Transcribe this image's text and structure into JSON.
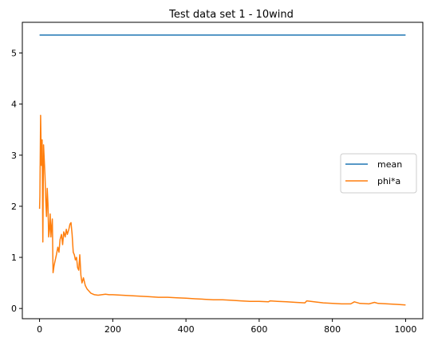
{
  "chart_data": {
    "type": "line",
    "title": "Test data set 1 - 10wind",
    "xlabel": "",
    "ylabel": "",
    "xlim": [
      -47,
      1047
    ],
    "ylim": [
      -0.2,
      5.6
    ],
    "xticks": [
      0,
      200,
      400,
      600,
      800,
      1000
    ],
    "yticks": [
      0,
      1,
      2,
      3,
      4,
      5
    ],
    "grid": false,
    "legend_position": "center-right",
    "series": [
      {
        "name": "mean",
        "color": "#1f77b4",
        "x": [
          0,
          1000
        ],
        "y": [
          5.35,
          5.35
        ]
      },
      {
        "name": "phi*a",
        "color": "#ff7f0e",
        "x": [
          0,
          1,
          3,
          5,
          7,
          9,
          11,
          13,
          15,
          17,
          19,
          21,
          23,
          25,
          27,
          29,
          31,
          33,
          35,
          37,
          40,
          43,
          46,
          50,
          53,
          56,
          60,
          63,
          66,
          70,
          73,
          76,
          80,
          83,
          86,
          89,
          92,
          95,
          98,
          101,
          104,
          107,
          110,
          113,
          116,
          120,
          125,
          130,
          140,
          150,
          160,
          170,
          180,
          190,
          200,
          225,
          250,
          275,
          300,
          325,
          350,
          375,
          400,
          425,
          450,
          475,
          500,
          525,
          550,
          575,
          600,
          625,
          630,
          650,
          675,
          700,
          725,
          730,
          750,
          775,
          800,
          825,
          850,
          860,
          875,
          900,
          915,
          925,
          950,
          975,
          1000
        ],
        "y": [
          1.95,
          2.2,
          3.78,
          2.8,
          3.3,
          1.3,
          3.2,
          2.9,
          2.6,
          2.1,
          1.8,
          2.35,
          2.05,
          1.4,
          1.55,
          1.85,
          1.4,
          1.6,
          1.75,
          0.7,
          0.85,
          0.95,
          1.05,
          1.2,
          1.1,
          1.35,
          1.45,
          1.25,
          1.5,
          1.4,
          1.55,
          1.45,
          1.55,
          1.65,
          1.68,
          1.45,
          1.1,
          1.05,
          0.95,
          1.0,
          0.8,
          0.75,
          1.05,
          0.65,
          0.5,
          0.6,
          0.45,
          0.38,
          0.3,
          0.27,
          0.26,
          0.27,
          0.28,
          0.27,
          0.27,
          0.26,
          0.25,
          0.24,
          0.23,
          0.22,
          0.22,
          0.21,
          0.2,
          0.19,
          0.18,
          0.17,
          0.17,
          0.16,
          0.15,
          0.14,
          0.14,
          0.13,
          0.15,
          0.14,
          0.13,
          0.12,
          0.11,
          0.15,
          0.13,
          0.11,
          0.1,
          0.09,
          0.09,
          0.13,
          0.1,
          0.09,
          0.12,
          0.1,
          0.09,
          0.08,
          0.07
        ]
      }
    ]
  }
}
